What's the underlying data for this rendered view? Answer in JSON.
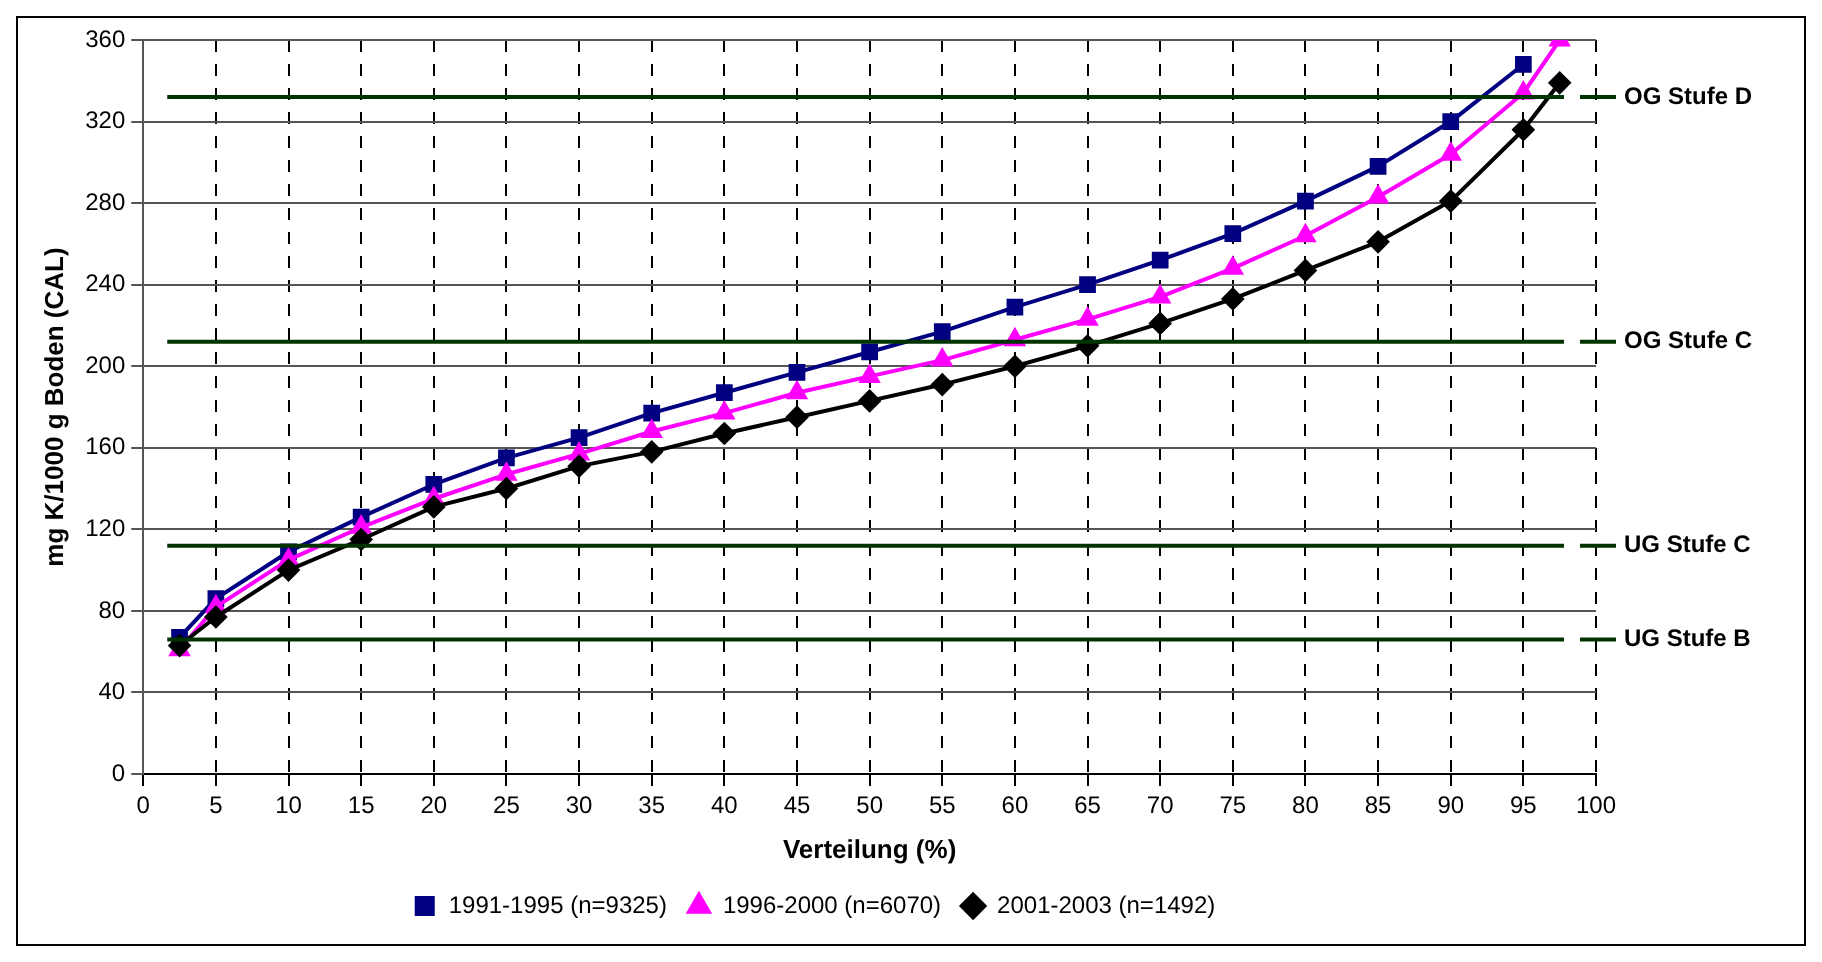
{
  "chart_data": {
    "type": "line",
    "xlabel": "Verteilung (%)",
    "ylabel": "mg K/1000 g Boden (CAL)",
    "x": [
      2.5,
      5,
      10,
      15,
      20,
      25,
      30,
      35,
      40,
      45,
      50,
      55,
      60,
      65,
      70,
      75,
      80,
      85,
      90,
      95,
      97.5
    ],
    "series": [
      {
        "name": "1991-1995 (n=9325)",
        "color": "#000080",
        "marker": "square",
        "values": [
          67,
          86,
          109,
          126,
          142,
          155,
          165,
          177,
          187,
          197,
          207,
          217,
          229,
          240,
          252,
          265,
          281,
          298,
          320,
          348,
          null
        ]
      },
      {
        "name": "1996-2000 (n=6070)",
        "color": "#ff00ff",
        "marker": "triangle",
        "values": [
          61,
          82,
          105,
          121,
          135,
          147,
          157,
          168,
          177,
          187,
          195,
          203,
          213,
          223,
          234,
          248,
          264,
          283,
          304,
          334,
          360
        ]
      },
      {
        "name": "2001-2003 (n=1492)",
        "color": "#000000",
        "marker": "diamond",
        "values": [
          63,
          77,
          100,
          115,
          131,
          140,
          151,
          158,
          167,
          175,
          183,
          191,
          200,
          210,
          221,
          233,
          247,
          261,
          281,
          316,
          339
        ]
      }
    ],
    "xlim": [
      0,
      100
    ],
    "xticks": [
      0,
      5,
      10,
      15,
      20,
      25,
      30,
      35,
      40,
      45,
      50,
      55,
      60,
      65,
      70,
      75,
      80,
      85,
      90,
      95,
      100
    ],
    "ylim": [
      0,
      360
    ],
    "yticks": [
      0,
      40,
      80,
      120,
      160,
      200,
      240,
      280,
      320,
      360
    ],
    "grid": true,
    "legend": "bottom",
    "line_style": "solid",
    "ref_lines": [
      {
        "axis": "y",
        "value": 332,
        "label": "OG Stufe D",
        "color": "#003300"
      },
      {
        "axis": "y",
        "value": 212,
        "label": "OG Stufe C",
        "color": "#003300"
      },
      {
        "axis": "y",
        "value": 112,
        "label": "UG Stufe C",
        "color": "#003300"
      },
      {
        "axis": "y",
        "value": 66,
        "label": "UG Stufe B",
        "color": "#003300"
      }
    ]
  }
}
